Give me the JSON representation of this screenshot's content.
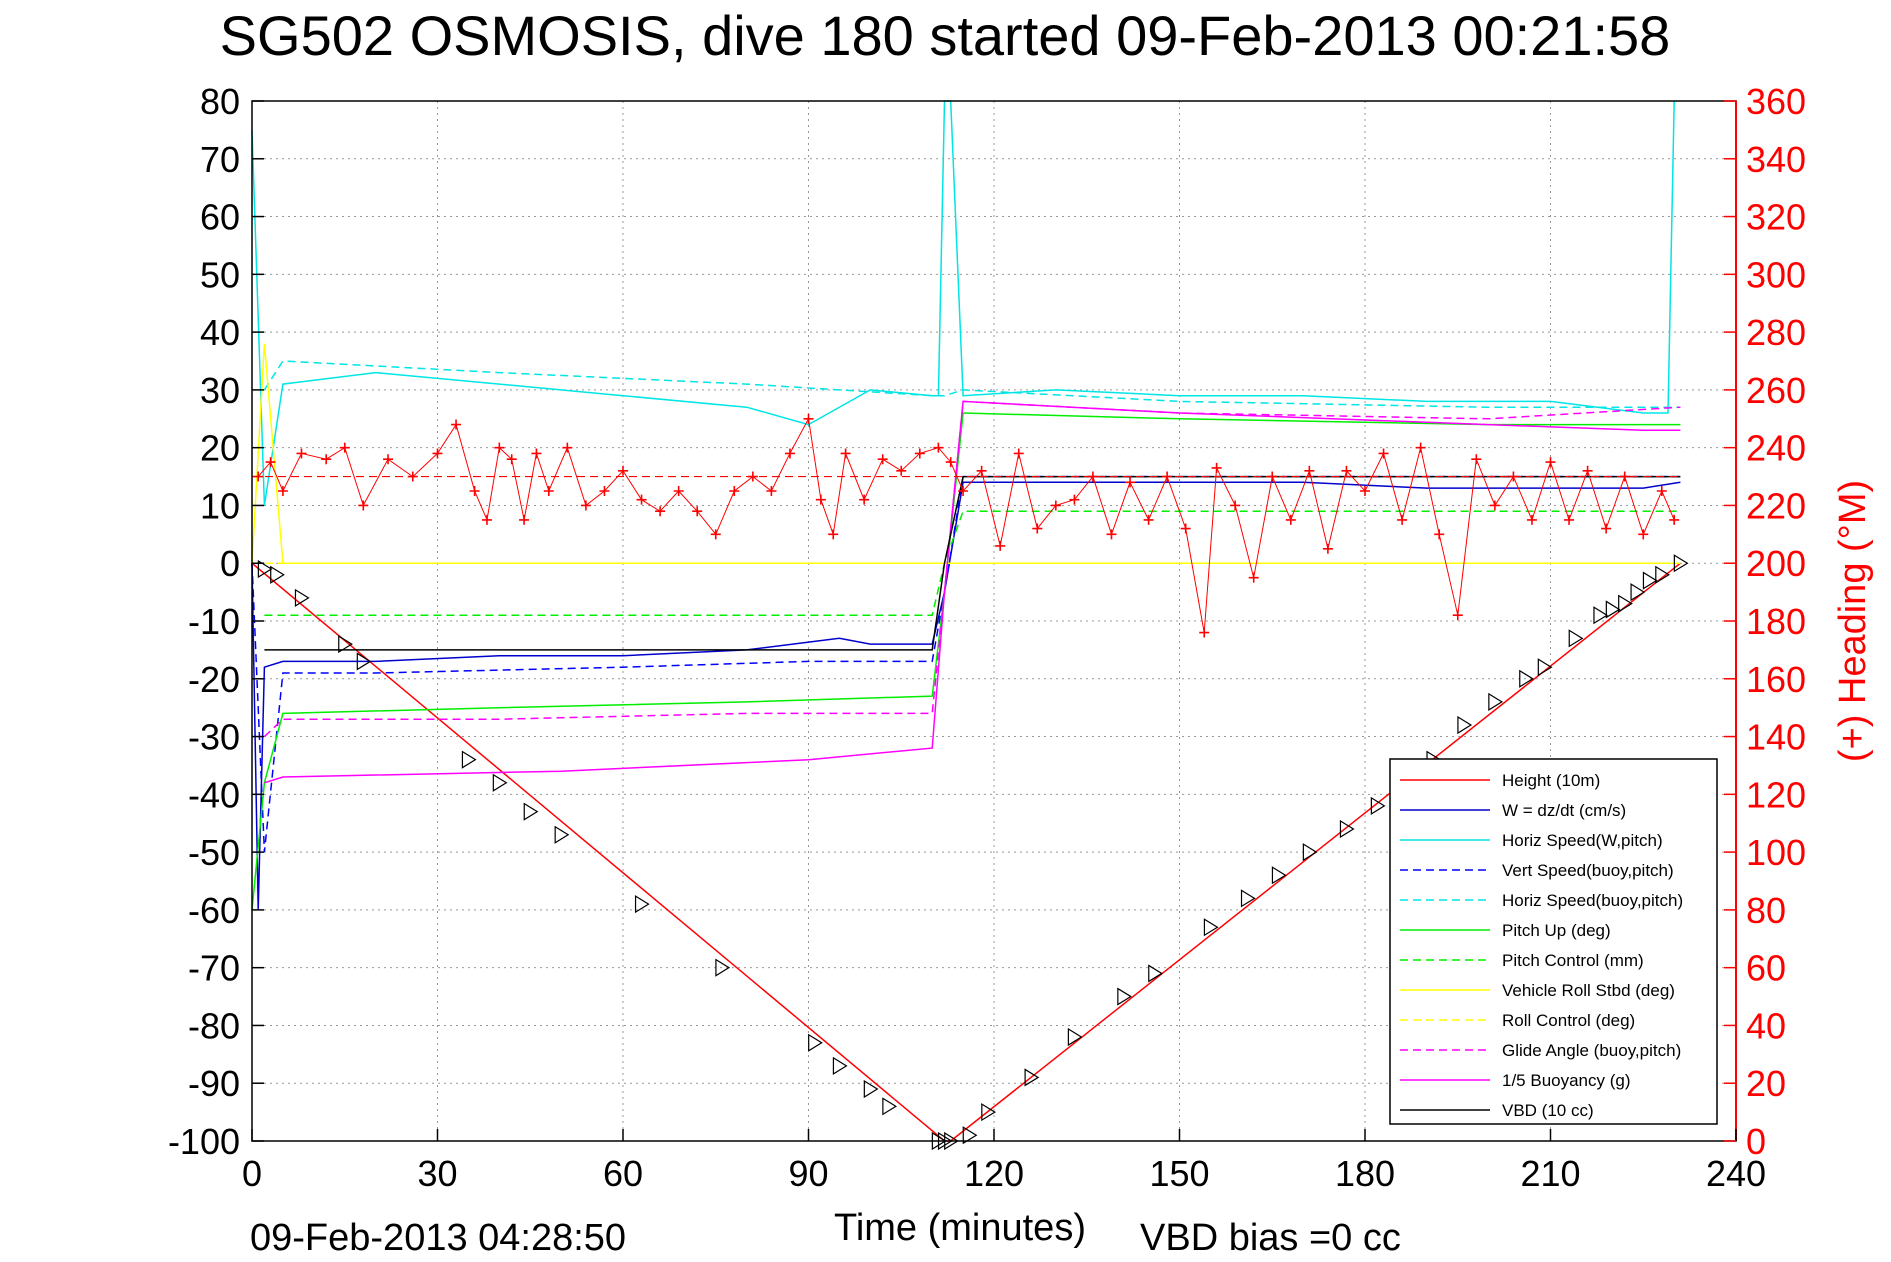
{
  "chart_data": {
    "type": "line",
    "title": "SG502 OSMOSIS, dive 180 started 09-Feb-2013 00:21:58",
    "xlabel": "Time (minutes)",
    "ylabel": "",
    "ylabel_right": "(+) Heading (°M)",
    "xlim": [
      0,
      240
    ],
    "ylim": [
      -100,
      80
    ],
    "ylim_right": [
      0,
      360
    ],
    "x_ticks": [
      "0",
      "30",
      "60",
      "90",
      "120",
      "150",
      "180",
      "210",
      "240"
    ],
    "x_tick_values": [
      0,
      30,
      60,
      90,
      120,
      150,
      180,
      210,
      240
    ],
    "y_ticks": [
      "80",
      "70",
      "60",
      "50",
      "40",
      "30",
      "20",
      "10",
      "0",
      "-10",
      "-20",
      "-30",
      "-40",
      "-50",
      "-60",
      "-70",
      "-80",
      "-90",
      "-100"
    ],
    "y_tick_values": [
      80,
      70,
      60,
      50,
      40,
      30,
      20,
      10,
      0,
      -10,
      -20,
      -30,
      -40,
      -50,
      -60,
      -70,
      -80,
      -90,
      -100
    ],
    "y_right_ticks": [
      "360",
      "340",
      "320",
      "300",
      "280",
      "260",
      "240",
      "220",
      "200",
      "180",
      "160",
      "140",
      "120",
      "100",
      "80",
      "60",
      "40",
      "20",
      "0"
    ],
    "y_right_tick_values": [
      360,
      340,
      320,
      300,
      280,
      260,
      240,
      220,
      200,
      180,
      160,
      140,
      120,
      100,
      80,
      60,
      40,
      20,
      0
    ],
    "grid": true,
    "legend_position": "bottom-right",
    "footer_left": "09-Feb-2013 04:28:50",
    "footer_right": "VBD bias =0 cc",
    "series": [
      {
        "name": "Height (10m)",
        "color": "#ff0000",
        "dash": "solid",
        "x": [
          0,
          112,
          113,
          231
        ],
        "y": [
          0,
          -100,
          -100,
          0
        ]
      },
      {
        "name": "W = dz/dt (cm/s)",
        "color": "#0000cc",
        "dash": "solid",
        "x": [
          0,
          1,
          2,
          5,
          20,
          40,
          60,
          80,
          95,
          100,
          110,
          112,
          115,
          130,
          150,
          170,
          190,
          210,
          225,
          231
        ],
        "y": [
          0,
          -60,
          -18,
          -17,
          -17,
          -16,
          -16,
          -15,
          -13,
          -14,
          -14,
          -5,
          14,
          14,
          14,
          14,
          13,
          13,
          13,
          14
        ]
      },
      {
        "name": "Horiz Speed(W,pitch)",
        "color": "#00e5e5",
        "dash": "solid",
        "x": [
          0,
          2,
          5,
          20,
          40,
          60,
          80,
          90,
          100,
          110,
          111,
          112,
          113,
          115,
          130,
          150,
          170,
          190,
          210,
          225,
          229,
          230
        ],
        "y": [
          75,
          10,
          31,
          33,
          31,
          29,
          27,
          24,
          30,
          29,
          29,
          80,
          80,
          29,
          30,
          29,
          29,
          28,
          28,
          26,
          26,
          80
        ]
      },
      {
        "name": "Vert Speed(buoy,pitch)",
        "color": "#0000ff",
        "dash": "dashed",
        "x": [
          0,
          2,
          5,
          20,
          60,
          90,
          110,
          112,
          115,
          150,
          200,
          231
        ],
        "y": [
          0,
          -50,
          -19,
          -19,
          -18,
          -17,
          -17,
          -5,
          15,
          15,
          15,
          15
        ]
      },
      {
        "name": "Horiz Speed(buoy,pitch)",
        "color": "#00e5e5",
        "dash": "dashed",
        "x": [
          2,
          5,
          40,
          80,
          110,
          112,
          115,
          150,
          200,
          231
        ],
        "y": [
          30,
          35,
          33,
          31,
          29,
          29,
          30,
          28,
          27,
          27
        ]
      },
      {
        "name": "Pitch Up (deg)",
        "color": "#00ee00",
        "dash": "solid",
        "x": [
          0,
          2,
          5,
          40,
          80,
          110,
          112,
          115,
          150,
          200,
          231
        ],
        "y": [
          -60,
          -38,
          -26,
          -25,
          -24,
          -23,
          -5,
          26,
          25,
          24,
          24
        ]
      },
      {
        "name": "Pitch Control (mm)",
        "color": "#00ee00",
        "dash": "dashed",
        "x": [
          2,
          5,
          110,
          112,
          115,
          231
        ],
        "y": [
          -9,
          -9,
          -9,
          0,
          9,
          9
        ]
      },
      {
        "name": "Vehicle Roll Stbd (deg)",
        "color": "#ffff00",
        "dash": "solid",
        "x": [
          0,
          2,
          5,
          110,
          112,
          115,
          231
        ],
        "y": [
          0,
          38,
          0,
          0,
          0,
          0,
          0
        ]
      },
      {
        "name": "Roll Control (deg)",
        "color": "#ffff00",
        "dash": "dashed",
        "x": [
          0,
          231
        ],
        "y": [
          0,
          0
        ]
      },
      {
        "name": "Glide Angle (buoy,pitch)",
        "color": "#ff00ff",
        "dash": "dashed",
        "x": [
          2,
          5,
          40,
          80,
          110,
          112,
          115,
          150,
          200,
          231
        ],
        "y": [
          -30,
          -27,
          -27,
          -26,
          -26,
          -5,
          28,
          26,
          25,
          27
        ]
      },
      {
        "name": "1/5 Buoyancy (g)",
        "color": "#ff00ff",
        "dash": "solid",
        "x": [
          2,
          5,
          50,
          90,
          110,
          112,
          115,
          150,
          200,
          225,
          231
        ],
        "y": [
          -38,
          -37,
          -36,
          -34,
          -32,
          -5,
          28,
          26,
          24,
          23,
          23
        ]
      },
      {
        "name": "VBD (10 cc)",
        "color": "#000000",
        "dash": "solid",
        "x": [
          2,
          5,
          110,
          112,
          115,
          231
        ],
        "y": [
          -15,
          -15,
          -15,
          0,
          15,
          15
        ]
      }
    ],
    "heading": {
      "name": "(+) Heading",
      "color": "#ff0000",
      "marker": "+",
      "mean": 230,
      "x": [
        1,
        3,
        5,
        8,
        12,
        15,
        18,
        22,
        26,
        30,
        33,
        36,
        38,
        40,
        42,
        44,
        46,
        48,
        51,
        54,
        57,
        60,
        63,
        66,
        69,
        72,
        75,
        78,
        81,
        84,
        87,
        90,
        92,
        94,
        96,
        99,
        102,
        105,
        108,
        111,
        113,
        115,
        118,
        121,
        124,
        127,
        130,
        133,
        136,
        139,
        142,
        145,
        148,
        151,
        154,
        156,
        159,
        162,
        165,
        168,
        171,
        174,
        177,
        180,
        183,
        186,
        189,
        192,
        195,
        198,
        201,
        204,
        207,
        210,
        213,
        216,
        219,
        222,
        225,
        228,
        230
      ],
      "y": [
        230,
        235,
        225,
        238,
        236,
        240,
        220,
        236,
        230,
        238,
        248,
        225,
        215,
        240,
        236,
        215,
        238,
        225,
        240,
        220,
        225,
        232,
        222,
        218,
        225,
        218,
        210,
        225,
        230,
        225,
        238,
        250,
        222,
        210,
        238,
        222,
        236,
        232,
        238,
        240,
        235,
        225,
        232,
        206,
        238,
        212,
        220,
        222,
        230,
        210,
        228,
        215,
        230,
        212,
        176,
        233,
        220,
        195,
        230,
        215,
        232,
        205,
        232,
        225,
        238,
        215,
        240,
        210,
        182,
        236,
        220,
        230,
        215,
        235,
        215,
        232,
        212,
        230,
        210,
        225,
        215
      ]
    },
    "depth_markers": {
      "x": [
        2,
        4,
        8,
        15,
        18,
        35,
        40,
        45,
        50,
        63,
        76,
        91,
        95,
        100,
        103,
        111,
        112,
        113,
        116,
        119,
        126,
        133,
        141,
        146,
        155,
        161,
        166,
        171,
        177,
        182,
        191,
        196,
        201,
        206,
        209,
        214,
        218,
        220,
        222,
        224,
        226,
        228,
        231
      ],
      "y": [
        -1,
        -2,
        -6,
        -14,
        -17,
        -34,
        -38,
        -43,
        -47,
        -59,
        -70,
        -83,
        -87,
        -91,
        -94,
        -100,
        -100,
        -100,
        -99,
        -95,
        -89,
        -82,
        -75,
        -71,
        -63,
        -58,
        -54,
        -50,
        -46,
        -42,
        -34,
        -28,
        -24,
        -20,
        -18,
        -13,
        -9,
        -8,
        -7,
        -5,
        -3,
        -2,
        0
      ]
    }
  }
}
